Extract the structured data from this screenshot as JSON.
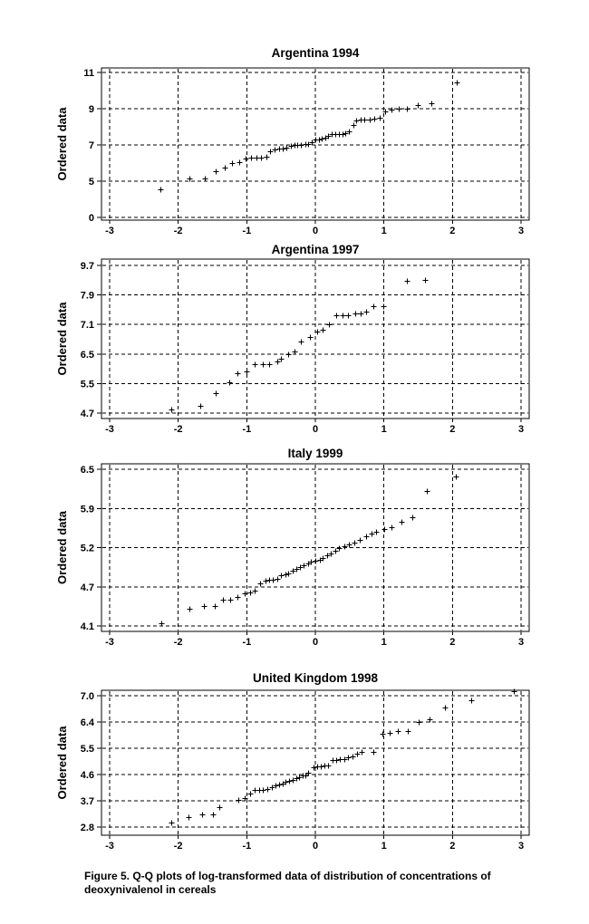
{
  "figure": {
    "caption": {
      "lines": [
        "Figure 5.  Q-Q plots of log-transformed data of distribution of concentrations of",
        "deoxynivalenol in cereals"
      ]
    },
    "colors": {
      "foreground": "#000000",
      "background": "#ffffff"
    }
  },
  "chart_data": [
    {
      "type": "scatter",
      "title": "Argentina 1994",
      "ylabel": "Ordered data",
      "xlabel": "",
      "marker": "plus-cross",
      "grid": "dashed",
      "xlim": [
        -3,
        3
      ],
      "xtick_labels": [
        "-3",
        "-2",
        "-1",
        "0",
        "1",
        "2",
        "3"
      ],
      "xtick_values": [
        -3,
        -2,
        -1,
        0,
        1,
        2,
        3
      ],
      "ytick_labels": [
        "0",
        "5",
        "7",
        "9",
        "11"
      ],
      "ytick_values": [
        0,
        5,
        7,
        9,
        11
      ],
      "x": [
        -2.26,
        -1.84,
        -1.61,
        -1.45,
        -1.32,
        -1.21,
        -1.11,
        -1.02,
        -0.94,
        -0.86,
        -0.79,
        -0.72,
        -0.66,
        -0.59,
        -0.53,
        -0.48,
        -0.42,
        -0.36,
        -0.31,
        -0.26,
        -0.21,
        -0.15,
        -0.1,
        -0.05,
        0.0,
        0.05,
        0.09,
        0.14,
        0.19,
        0.24,
        0.29,
        0.34,
        0.39,
        0.44,
        0.49,
        0.55,
        0.6,
        0.66,
        0.72,
        0.79,
        0.86,
        0.94,
        1.02,
        1.11,
        1.21,
        1.33,
        1.49,
        1.69,
        2.06
      ],
      "y": [
        3.9,
        5.15,
        5.15,
        5.55,
        5.75,
        6.0,
        6.05,
        6.25,
        6.3,
        6.3,
        6.3,
        6.35,
        6.65,
        6.75,
        6.8,
        6.8,
        6.85,
        6.95,
        7.0,
        7.0,
        7.0,
        7.05,
        7.05,
        7.15,
        7.3,
        7.3,
        7.35,
        7.4,
        7.5,
        7.6,
        7.6,
        7.6,
        7.6,
        7.65,
        7.75,
        8.1,
        8.35,
        8.4,
        8.4,
        8.4,
        8.45,
        8.5,
        8.85,
        8.95,
        9.0,
        9.0,
        9.2,
        9.3,
        10.45
      ]
    },
    {
      "type": "scatter",
      "title": "Argentina  1997",
      "ylabel": "Ordered data",
      "xlabel": "",
      "marker": "plus-cross",
      "grid": "dashed",
      "xlim": [
        -3,
        3
      ],
      "xtick_labels": [
        "-3",
        "-2",
        "-1",
        "0",
        "1",
        "2",
        "3"
      ],
      "xtick_values": [
        -3,
        -2,
        -1,
        0,
        1,
        2,
        3
      ],
      "ytick_labels": [
        "4.7",
        "5.5",
        "6.5",
        "7.1",
        "7.9",
        "9.7"
      ],
      "ytick_values": [
        4.7,
        5.5,
        6.5,
        7.1,
        7.9,
        9.7
      ],
      "x": [
        -2.1,
        -1.68,
        -1.45,
        -1.26,
        -1.13,
        -1.0,
        -0.88,
        -0.77,
        -0.67,
        -0.56,
        -0.5,
        -0.4,
        -0.31,
        -0.21,
        -0.08,
        0.02,
        0.11,
        0.2,
        0.3,
        0.39,
        0.48,
        0.58,
        0.66,
        0.74,
        0.85,
        0.99,
        1.33,
        1.6
      ],
      "y": [
        4.8,
        4.9,
        5.25,
        5.55,
        5.85,
        5.9,
        6.15,
        6.15,
        6.15,
        6.25,
        6.35,
        6.5,
        6.55,
        6.75,
        6.85,
        6.95,
        7.0,
        7.1,
        7.35,
        7.35,
        7.35,
        7.4,
        7.4,
        7.45,
        7.6,
        7.6,
        8.75,
        8.8
      ]
    },
    {
      "type": "scatter",
      "title": "Italy 1999",
      "ylabel": "Ordered data",
      "xlabel": "",
      "marker": "plus-cross",
      "grid": "dashed",
      "xlim": [
        -3,
        3
      ],
      "xtick_labels": [
        "-3",
        "-2",
        "-1",
        "0",
        "1",
        "2",
        "3"
      ],
      "xtick_values": [
        -3,
        -2,
        -1,
        0,
        1,
        2,
        3
      ],
      "ytick_labels": [
        "4.1",
        "4.7",
        "5.2",
        "5.9",
        "6.5"
      ],
      "ytick_values": [
        4.1,
        4.7,
        5.2,
        5.9,
        6.5
      ],
      "x": [
        -2.25,
        -1.84,
        -1.62,
        -1.47,
        -1.35,
        -1.24,
        -1.13,
        -1.03,
        -0.95,
        -0.88,
        -0.8,
        -0.73,
        -0.68,
        -0.62,
        -0.56,
        -0.5,
        -0.44,
        -0.39,
        -0.33,
        -0.28,
        -0.22,
        -0.17,
        -0.11,
        -0.06,
        0.0,
        0.06,
        0.11,
        0.17,
        0.22,
        0.29,
        0.35,
        0.42,
        0.49,
        0.57,
        0.65,
        0.74,
        0.82,
        0.89,
        1.0,
        1.11,
        1.25,
        1.41,
        1.63,
        2.05
      ],
      "y": [
        4.14,
        4.36,
        4.41,
        4.41,
        4.5,
        4.5,
        4.54,
        4.6,
        4.62,
        4.64,
        4.74,
        4.78,
        4.79,
        4.79,
        4.8,
        4.85,
        4.86,
        4.87,
        4.9,
        4.93,
        4.95,
        4.97,
        5.0,
        5.02,
        5.03,
        5.04,
        5.07,
        5.1,
        5.13,
        5.16,
        5.19,
        5.22,
        5.25,
        5.29,
        5.33,
        5.4,
        5.45,
        5.49,
        5.53,
        5.57,
        5.66,
        5.75,
        6.17,
        6.39
      ]
    },
    {
      "type": "scatter",
      "title": "United Kingdom 1998",
      "ylabel": "Ordered data",
      "xlabel": "",
      "marker": "plus-cross",
      "grid": "dashed",
      "xlim": [
        -3,
        3
      ],
      "xtick_labels": [
        "-3",
        "-2",
        "-1",
        "0",
        "1",
        "2",
        "3"
      ],
      "xtick_values": [
        -3,
        -2,
        -1,
        0,
        1,
        2,
        3
      ],
      "ytick_labels": [
        "2.8",
        "3.7",
        "4.6",
        "5.5",
        "6.4",
        "7.0"
      ],
      "ytick_values": [
        2.8,
        3.7,
        4.6,
        5.5,
        6.4,
        7.0
      ],
      "x": [
        -2.1,
        -1.85,
        -1.65,
        -1.5,
        -1.4,
        -1.12,
        -1.03,
        -0.95,
        -0.88,
        -0.82,
        -0.76,
        -0.7,
        -0.64,
        -0.58,
        -0.53,
        -0.48,
        -0.43,
        -0.38,
        -0.33,
        -0.28,
        -0.24,
        -0.19,
        -0.15,
        -0.1,
        -0.02,
        0.03,
        0.08,
        0.13,
        0.19,
        0.25,
        0.3,
        0.36,
        0.42,
        0.48,
        0.54,
        0.61,
        0.68,
        0.85,
        0.98,
        1.08,
        1.2,
        1.35,
        1.5,
        1.67,
        1.89,
        2.27,
        2.9
      ],
      "y": [
        2.97,
        3.14,
        3.22,
        3.22,
        3.49,
        3.73,
        3.8,
        3.96,
        4.08,
        4.08,
        4.08,
        4.11,
        4.17,
        4.22,
        4.25,
        4.29,
        4.35,
        4.39,
        4.42,
        4.48,
        4.5,
        4.56,
        4.58,
        4.66,
        4.84,
        4.87,
        4.89,
        4.91,
        4.91,
        5.09,
        5.11,
        5.14,
        5.14,
        5.19,
        5.21,
        5.3,
        5.38,
        5.38,
        5.99,
        6.02,
        6.1,
        6.1,
        6.39,
        6.46,
        6.73,
        6.89,
        7.1
      ]
    }
  ]
}
